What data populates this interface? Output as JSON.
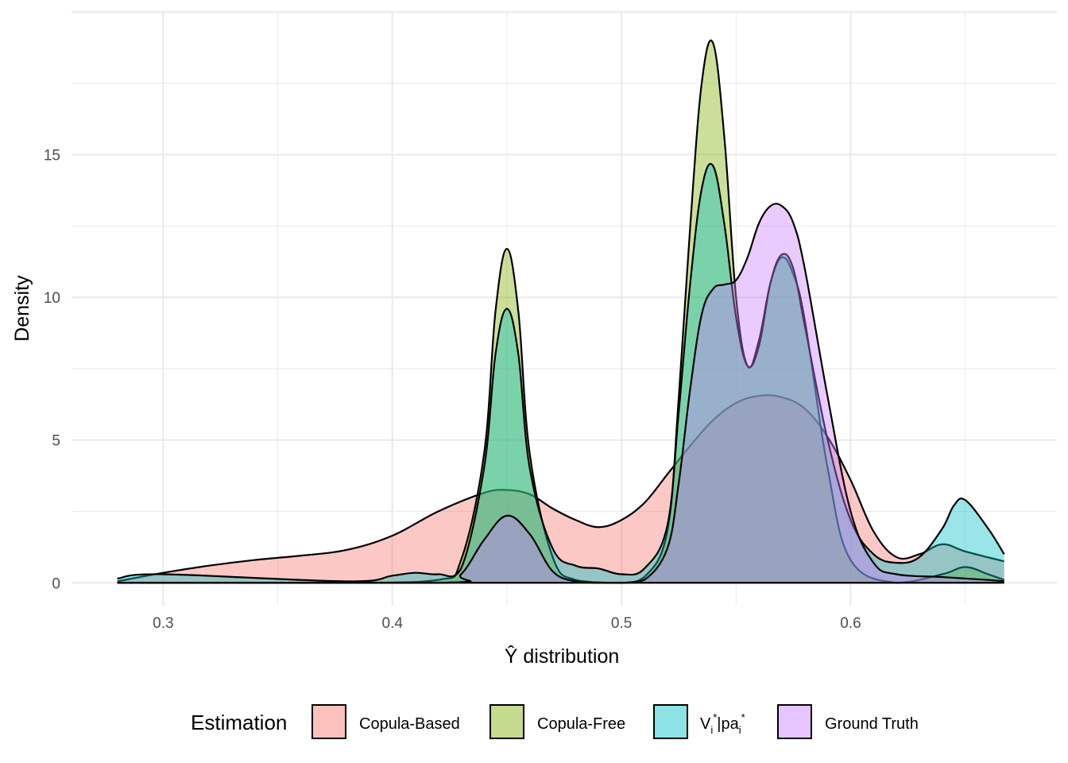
{
  "chart_data": {
    "type": "area",
    "xlabel": "Ŷ distribution",
    "ylabel": "Density",
    "xlim": [
      0.26,
      0.69
    ],
    "ylim": [
      -0.8,
      20
    ],
    "x_ticks": [
      0.3,
      0.4,
      0.5,
      0.6
    ],
    "x_tick_labels": [
      "0.3",
      "0.4",
      "0.5",
      "0.6"
    ],
    "y_ticks": [
      0,
      5,
      10,
      15
    ],
    "y_tick_labels": [
      "0",
      "5",
      "10",
      "15"
    ],
    "grid": true,
    "legend_position": "bottom",
    "legend_title": "Estimation",
    "series": [
      {
        "name": "Copula-Based",
        "color": "#F8766D",
        "x": [
          0.28,
          0.3,
          0.32,
          0.34,
          0.36,
          0.38,
          0.4,
          0.42,
          0.44,
          0.45,
          0.46,
          0.47,
          0.48,
          0.49,
          0.5,
          0.51,
          0.52,
          0.53,
          0.54,
          0.55,
          0.56,
          0.57,
          0.58,
          0.59,
          0.6,
          0.61,
          0.62,
          0.63,
          0.64,
          0.65,
          0.667
        ],
        "y": [
          0.05,
          0.35,
          0.6,
          0.8,
          0.95,
          1.15,
          1.65,
          2.5,
          3.15,
          3.25,
          3.1,
          2.6,
          2.2,
          1.95,
          2.2,
          2.8,
          3.8,
          4.8,
          5.7,
          6.3,
          6.55,
          6.5,
          6.1,
          5.1,
          3.6,
          1.8,
          0.9,
          1.0,
          1.35,
          1.1,
          0.75
        ]
      },
      {
        "name": "Copula-Free",
        "color": "#7CAE00",
        "x": [
          0.28,
          0.38,
          0.42,
          0.43,
          0.44,
          0.445,
          0.45,
          0.455,
          0.46,
          0.47,
          0.48,
          0.5,
          0.51,
          0.52,
          0.525,
          0.53,
          0.535,
          0.54,
          0.545,
          0.55,
          0.555,
          0.56,
          0.565,
          0.57,
          0.575,
          0.58,
          0.59,
          0.6,
          0.62,
          0.64,
          0.65,
          0.66,
          0.667
        ],
        "y": [
          0,
          0,
          0.1,
          0.8,
          4.5,
          9.5,
          11.7,
          9.5,
          4.5,
          0.9,
          0.1,
          0,
          0.2,
          1.8,
          6.5,
          12.5,
          17.5,
          18.9,
          15.5,
          10.0,
          7.6,
          8.5,
          10.5,
          11.4,
          10.8,
          9.2,
          4.0,
          0.8,
          0,
          0.3,
          0.55,
          0.3,
          0.1
        ]
      },
      {
        "name": "V_i*|pa_i*",
        "color": "#00BFC4",
        "x": [
          0.28,
          0.3,
          0.38,
          0.4,
          0.41,
          0.42,
          0.43,
          0.44,
          0.445,
          0.45,
          0.455,
          0.46,
          0.47,
          0.48,
          0.49,
          0.5,
          0.51,
          0.52,
          0.525,
          0.53,
          0.535,
          0.54,
          0.545,
          0.55,
          0.555,
          0.56,
          0.565,
          0.57,
          0.575,
          0.58,
          0.59,
          0.6,
          0.61,
          0.62,
          0.63,
          0.64,
          0.645,
          0.65,
          0.66,
          0.667
        ],
        "y": [
          0.15,
          0.3,
          0.05,
          0.25,
          0.35,
          0.3,
          0.5,
          4.0,
          8.0,
          9.6,
          8.0,
          4.0,
          1.2,
          0.6,
          0.5,
          0.3,
          0.5,
          2.0,
          6.0,
          10.5,
          13.8,
          14.6,
          12.5,
          9.3,
          7.6,
          8.3,
          10.5,
          11.5,
          11.0,
          9.0,
          5.0,
          2.2,
          1.0,
          0.7,
          0.9,
          1.9,
          2.7,
          2.9,
          1.9,
          1.0
        ]
      },
      {
        "name": "Ground Truth",
        "color": "#C77CFF",
        "x": [
          0.28,
          0.42,
          0.43,
          0.44,
          0.45,
          0.46,
          0.47,
          0.48,
          0.49,
          0.5,
          0.51,
          0.52,
          0.525,
          0.53,
          0.535,
          0.54,
          0.545,
          0.55,
          0.555,
          0.56,
          0.565,
          0.57,
          0.575,
          0.58,
          0.59,
          0.6,
          0.61,
          0.62,
          0.64,
          0.66,
          0.667
        ],
        "y": [
          0,
          0,
          0.3,
          1.5,
          2.35,
          1.7,
          0.4,
          0.05,
          0,
          0,
          0.1,
          1.2,
          3.5,
          6.8,
          9.4,
          10.3,
          10.45,
          10.6,
          11.4,
          12.6,
          13.2,
          13.2,
          12.6,
          11.0,
          6.5,
          2.5,
          0.7,
          0.3,
          0.2,
          0.1,
          0.05
        ]
      }
    ]
  },
  "legend": {
    "title": "Estimation",
    "items": [
      {
        "label": "Copula-Based",
        "color": "#F8766D"
      },
      {
        "label": "Copula-Free",
        "color": "#7CAE00"
      },
      {
        "label_main": "V",
        "label_sub1": "i",
        "label_sup1": "*",
        "label_mid": "|pa",
        "label_sub2": "i",
        "label_sup2": "*",
        "color": "#00BFC4"
      },
      {
        "label": "Ground Truth",
        "color": "#C77CFF"
      }
    ]
  }
}
